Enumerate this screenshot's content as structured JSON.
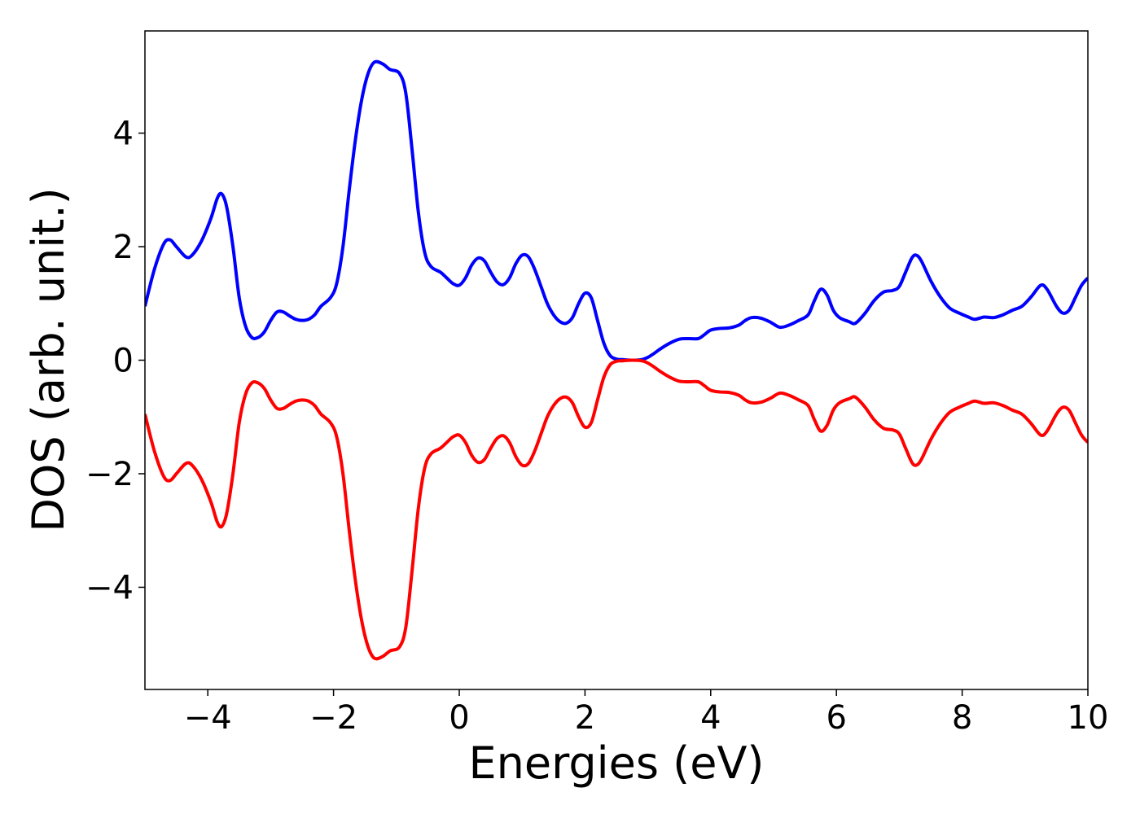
{
  "chart_data": {
    "type": "line",
    "title": "",
    "xlabel": "Energies (eV)",
    "ylabel": "DOS (arb. unit.)",
    "xlim": [
      -5,
      10
    ],
    "ylim": [
      -5.8,
      5.8
    ],
    "xticks": [
      -4,
      -2,
      0,
      2,
      4,
      6,
      8,
      10
    ],
    "xtick_labels": [
      "−4",
      "−2",
      "0",
      "2",
      "4",
      "6",
      "8",
      "10"
    ],
    "yticks": [
      -4,
      -2,
      0,
      2,
      4
    ],
    "ytick_labels": [
      "−4",
      "−2",
      "0",
      "2",
      "4"
    ],
    "grid": false,
    "legend": "none",
    "series": [
      {
        "color": "#0000ff",
        "points": [
          [
            -5.0,
            0.95
          ],
          [
            -4.85,
            1.6
          ],
          [
            -4.7,
            2.05
          ],
          [
            -4.6,
            2.12
          ],
          [
            -4.5,
            2.0
          ],
          [
            -4.35,
            1.82
          ],
          [
            -4.25,
            1.85
          ],
          [
            -4.1,
            2.1
          ],
          [
            -3.95,
            2.5
          ],
          [
            -3.85,
            2.85
          ],
          [
            -3.78,
            2.93
          ],
          [
            -3.7,
            2.7
          ],
          [
            -3.6,
            2.0
          ],
          [
            -3.5,
            1.1
          ],
          [
            -3.4,
            0.6
          ],
          [
            -3.3,
            0.4
          ],
          [
            -3.2,
            0.4
          ],
          [
            -3.1,
            0.5
          ],
          [
            -3.0,
            0.7
          ],
          [
            -2.9,
            0.85
          ],
          [
            -2.8,
            0.85
          ],
          [
            -2.7,
            0.78
          ],
          [
            -2.6,
            0.72
          ],
          [
            -2.5,
            0.7
          ],
          [
            -2.4,
            0.72
          ],
          [
            -2.3,
            0.8
          ],
          [
            -2.2,
            0.95
          ],
          [
            -2.05,
            1.1
          ],
          [
            -1.95,
            1.35
          ],
          [
            -1.85,
            2.0
          ],
          [
            -1.75,
            3.0
          ],
          [
            -1.65,
            3.9
          ],
          [
            -1.55,
            4.6
          ],
          [
            -1.45,
            5.05
          ],
          [
            -1.35,
            5.25
          ],
          [
            -1.22,
            5.22
          ],
          [
            -1.1,
            5.12
          ],
          [
            -0.95,
            5.05
          ],
          [
            -0.85,
            4.7
          ],
          [
            -0.75,
            3.7
          ],
          [
            -0.65,
            2.6
          ],
          [
            -0.55,
            1.9
          ],
          [
            -0.45,
            1.65
          ],
          [
            -0.3,
            1.55
          ],
          [
            -0.2,
            1.45
          ],
          [
            -0.1,
            1.35
          ],
          [
            0.0,
            1.32
          ],
          [
            0.1,
            1.45
          ],
          [
            0.2,
            1.68
          ],
          [
            0.3,
            1.8
          ],
          [
            0.4,
            1.75
          ],
          [
            0.5,
            1.55
          ],
          [
            0.6,
            1.38
          ],
          [
            0.7,
            1.33
          ],
          [
            0.8,
            1.45
          ],
          [
            0.9,
            1.7
          ],
          [
            1.0,
            1.85
          ],
          [
            1.1,
            1.82
          ],
          [
            1.2,
            1.6
          ],
          [
            1.3,
            1.3
          ],
          [
            1.4,
            1.0
          ],
          [
            1.5,
            0.8
          ],
          [
            1.6,
            0.68
          ],
          [
            1.7,
            0.65
          ],
          [
            1.8,
            0.75
          ],
          [
            1.9,
            1.0
          ],
          [
            2.0,
            1.18
          ],
          [
            2.1,
            1.1
          ],
          [
            2.2,
            0.7
          ],
          [
            2.3,
            0.3
          ],
          [
            2.4,
            0.08
          ],
          [
            2.5,
            0.02
          ],
          [
            2.6,
            0.01
          ],
          [
            2.75,
            0.0
          ],
          [
            2.9,
            0.01
          ],
          [
            3.0,
            0.05
          ],
          [
            3.1,
            0.12
          ],
          [
            3.2,
            0.2
          ],
          [
            3.35,
            0.3
          ],
          [
            3.5,
            0.37
          ],
          [
            3.65,
            0.38
          ],
          [
            3.8,
            0.38
          ],
          [
            3.9,
            0.45
          ],
          [
            4.0,
            0.53
          ],
          [
            4.15,
            0.56
          ],
          [
            4.3,
            0.57
          ],
          [
            4.45,
            0.62
          ],
          [
            4.55,
            0.7
          ],
          [
            4.65,
            0.75
          ],
          [
            4.8,
            0.74
          ],
          [
            4.95,
            0.67
          ],
          [
            5.1,
            0.58
          ],
          [
            5.25,
            0.62
          ],
          [
            5.4,
            0.7
          ],
          [
            5.55,
            0.8
          ],
          [
            5.65,
            1.05
          ],
          [
            5.75,
            1.25
          ],
          [
            5.85,
            1.15
          ],
          [
            5.95,
            0.88
          ],
          [
            6.05,
            0.75
          ],
          [
            6.2,
            0.68
          ],
          [
            6.3,
            0.65
          ],
          [
            6.45,
            0.82
          ],
          [
            6.6,
            1.05
          ],
          [
            6.75,
            1.2
          ],
          [
            6.9,
            1.23
          ],
          [
            7.0,
            1.3
          ],
          [
            7.1,
            1.55
          ],
          [
            7.2,
            1.8
          ],
          [
            7.27,
            1.85
          ],
          [
            7.35,
            1.75
          ],
          [
            7.5,
            1.4
          ],
          [
            7.65,
            1.12
          ],
          [
            7.8,
            0.92
          ],
          [
            7.95,
            0.83
          ],
          [
            8.1,
            0.76
          ],
          [
            8.2,
            0.72
          ],
          [
            8.35,
            0.76
          ],
          [
            8.5,
            0.75
          ],
          [
            8.65,
            0.8
          ],
          [
            8.8,
            0.88
          ],
          [
            8.95,
            0.95
          ],
          [
            9.1,
            1.12
          ],
          [
            9.25,
            1.32
          ],
          [
            9.35,
            1.25
          ],
          [
            9.5,
            0.95
          ],
          [
            9.6,
            0.83
          ],
          [
            9.7,
            0.88
          ],
          [
            9.8,
            1.1
          ],
          [
            9.9,
            1.32
          ],
          [
            10.0,
            1.45
          ]
        ]
      },
      {
        "color": "#ff0000",
        "mirror_of": 0
      }
    ]
  }
}
